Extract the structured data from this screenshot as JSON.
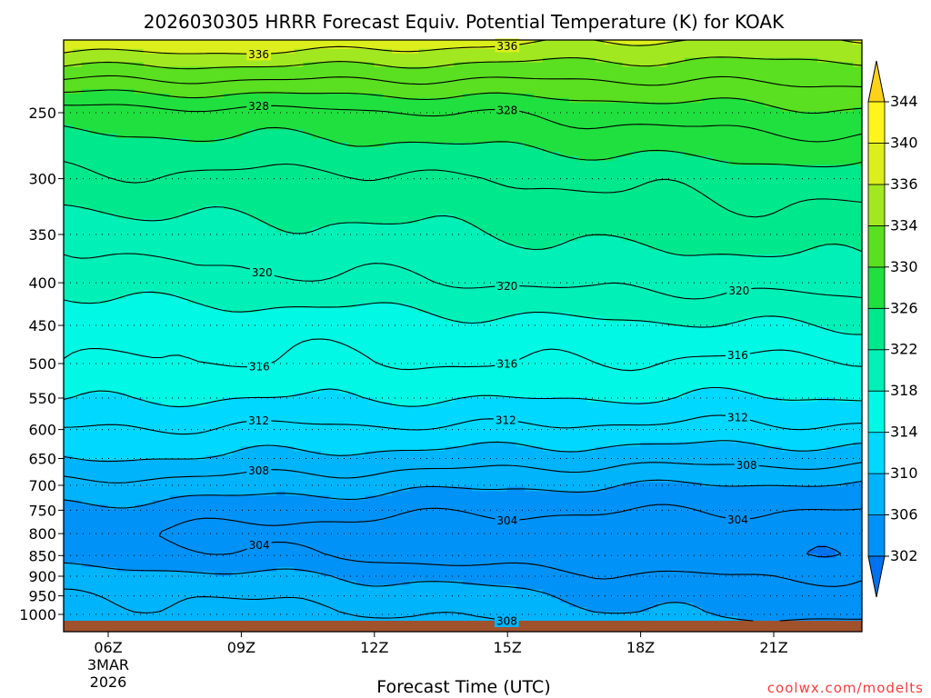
{
  "chart_data": {
    "type": "contour",
    "title": "2026030305 HRRR Forecast Equiv. Potential Temperature (K) for KOAK",
    "xlabel": "Forecast Time (UTC)",
    "ylabel": "",
    "credit": "coolwx.com/modelts",
    "x_start_hour": 5,
    "x_end_hour": 23,
    "x_ticks": [
      {
        "hour": 6,
        "label": "06Z",
        "date_line1": "3MAR",
        "date_line2": "2026"
      },
      {
        "hour": 9,
        "label": "09Z"
      },
      {
        "hour": 12,
        "label": "12Z"
      },
      {
        "hour": 15,
        "label": "15Z"
      },
      {
        "hour": 18,
        "label": "18Z"
      },
      {
        "hour": 21,
        "label": "21Z"
      }
    ],
    "y_axis": "pressure (hPa), log scale, decreasing upward",
    "ylim": [
      1025,
      200
    ],
    "y_ticks": [
      250,
      300,
      350,
      400,
      450,
      500,
      550,
      600,
      650,
      700,
      750,
      800,
      850,
      900,
      950,
      1000
    ],
    "surface_band": true,
    "colorbar": {
      "levels": [
        302,
        306,
        310,
        314,
        318,
        322,
        326,
        330,
        334,
        336,
        340,
        344
      ],
      "colors": [
        "#0072f0",
        "#0092f6",
        "#00b4fb",
        "#00d8ff",
        "#00f8e4",
        "#00f0b8",
        "#00e88c",
        "#20e040",
        "#5ae020",
        "#a2e820",
        "#dcee1c",
        "#fff51c",
        "#ffd21a"
      ],
      "extend": "both"
    },
    "contours": [
      {
        "level": 302,
        "label": ""
      },
      {
        "level": 304,
        "label": "304"
      },
      {
        "level": 306,
        "label": ""
      },
      {
        "level": 308,
        "label": "308"
      },
      {
        "level": 310,
        "label": ""
      },
      {
        "level": 312,
        "label": "312"
      },
      {
        "level": 314,
        "label": ""
      },
      {
        "level": 316,
        "label": "316"
      },
      {
        "level": 318,
        "label": ""
      },
      {
        "level": 320,
        "label": "320"
      },
      {
        "level": 322,
        "label": ""
      },
      {
        "level": 324,
        "label": ""
      },
      {
        "level": 326,
        "label": ""
      },
      {
        "level": 328,
        "label": "328"
      },
      {
        "level": 330,
        "label": ""
      },
      {
        "level": 332,
        "label": ""
      },
      {
        "level": 334,
        "label": ""
      },
      {
        "level": 336,
        "label": "336"
      }
    ],
    "profiles": [
      {
        "hour": 5,
        "p": [
          1020,
          1000,
          950,
          900,
          850,
          800,
          750,
          700,
          650,
          600,
          550,
          500,
          450,
          400,
          350,
          300,
          250,
          200
        ],
        "theta": [
          309.0,
          308.5,
          307.8,
          306.8,
          304.9,
          304.3,
          305.5,
          307.4,
          310.2,
          312.0,
          314.2,
          316.0,
          316.8,
          318.3,
          320.4,
          323.6,
          327.0,
          339.0
        ]
      },
      {
        "hour": 8,
        "p": [
          1020,
          1000,
          950,
          900,
          850,
          800,
          750,
          700,
          650,
          600,
          550,
          500,
          450,
          400,
          350,
          300,
          250,
          200
        ],
        "theta": [
          309.5,
          308.6,
          308.0,
          306.6,
          304.6,
          303.6,
          305.0,
          307.1,
          309.8,
          311.8,
          314.1,
          315.9,
          316.6,
          319.4,
          321.4,
          323.7,
          327.3,
          339.0
        ]
      },
      {
        "hour": 11,
        "p": [
          1020,
          1000,
          950,
          900,
          850,
          800,
          750,
          700,
          650,
          600,
          550,
          500,
          450,
          400,
          350,
          300,
          250,
          200
        ],
        "theta": [
          309.2,
          308.3,
          307.4,
          306.0,
          303.9,
          303.0,
          304.6,
          306.8,
          309.4,
          311.6,
          314.0,
          315.7,
          316.8,
          319.6,
          321.5,
          323.4,
          327.5,
          338.6
        ]
      },
      {
        "hour": 14,
        "p": [
          1020,
          1000,
          950,
          900,
          850,
          800,
          750,
          700,
          650,
          600,
          550,
          500,
          450,
          400,
          350,
          300,
          250,
          200
        ],
        "theta": [
          308.5,
          307.5,
          306.8,
          305.4,
          302.8,
          302.6,
          304.3,
          306.4,
          309.1,
          311.7,
          314.2,
          316.1,
          317.3,
          319.9,
          321.8,
          324.0,
          328.0,
          337.8
        ]
      },
      {
        "hour": 17,
        "p": [
          1020,
          1000,
          950,
          900,
          850,
          800,
          750,
          700,
          650,
          600,
          550,
          500,
          450,
          400,
          350,
          300,
          250,
          200
        ],
        "theta": [
          307.6,
          306.4,
          305.6,
          304.4,
          302.5,
          302.8,
          304.2,
          306.1,
          308.8,
          311.5,
          314.1,
          315.9,
          317.6,
          320.5,
          322.4,
          324.3,
          328.6,
          337.0
        ]
      },
      {
        "hour": 20,
        "p": [
          1020,
          1000,
          950,
          900,
          850,
          800,
          750,
          700,
          650,
          600,
          550,
          500,
          450,
          400,
          350,
          300,
          250,
          200
        ],
        "theta": [
          306.6,
          305.6,
          305.0,
          304.0,
          302.4,
          302.6,
          304.0,
          305.8,
          308.7,
          311.4,
          313.9,
          315.6,
          317.8,
          320.5,
          322.8,
          324.8,
          329.2,
          336.6
        ]
      },
      {
        "hour": 23,
        "p": [
          1020,
          1000,
          950,
          900,
          850,
          800,
          750,
          700,
          650,
          600,
          550,
          500,
          450,
          400,
          350,
          300,
          250,
          200
        ],
        "theta": [
          306.2,
          305.4,
          304.8,
          303.9,
          302.4,
          302.7,
          304.1,
          305.9,
          308.8,
          311.6,
          314.0,
          315.6,
          318.2,
          321.0,
          323.0,
          325.0,
          329.7,
          336.4
        ]
      }
    ]
  }
}
